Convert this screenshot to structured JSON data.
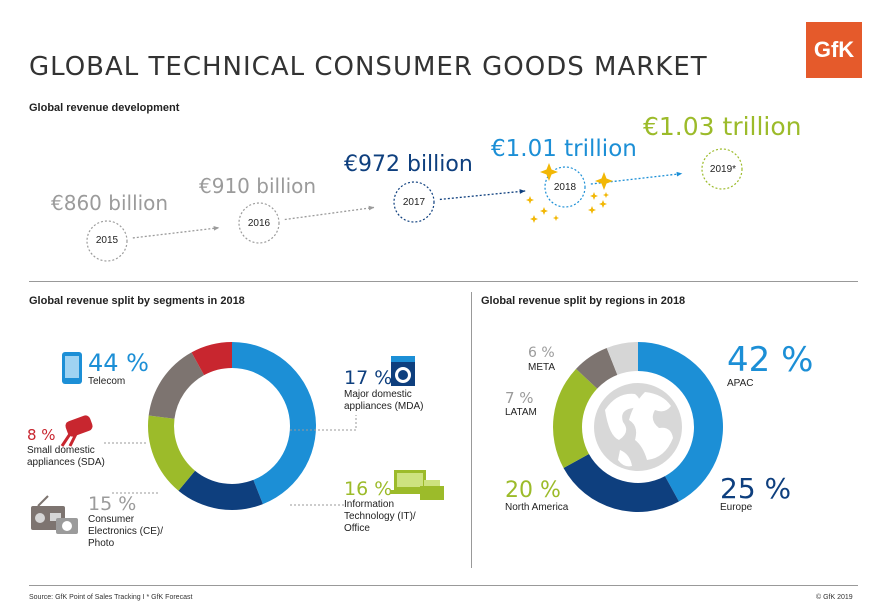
{
  "header": {
    "title": "GLOBAL TECHNICAL CONSUMER GOODS MARKET",
    "logo_text": "GfK"
  },
  "colors": {
    "grey": "#9b9b9b",
    "dark_blue": "#0e3f7e",
    "light_blue": "#1c8fd6",
    "green": "#9cbb2a",
    "red": "#c8262f",
    "taupe": "#7d7470",
    "light_grey": "#d6d6d6",
    "gold": "#f2b705",
    "logo_orange": "#e55a2b"
  },
  "revenue": {
    "title": "Global revenue development",
    "points": [
      {
        "year": "2015",
        "value_label": "€860 billion",
        "value": 860
      },
      {
        "year": "2016",
        "value_label": "€910 billion",
        "value": 910
      },
      {
        "year": "2017",
        "value_label": "€972 billion",
        "value": 972
      },
      {
        "year": "2018",
        "value_label": "€1.01 trillion",
        "value": 1010
      },
      {
        "year": "2019*",
        "value_label": "€1.03 trillion",
        "value": 1030
      }
    ]
  },
  "segments": {
    "title": "Global revenue split by segments in 2018",
    "telecom": {
      "pct": "44 %",
      "label": "Telecom"
    },
    "mda": {
      "pct": "17 %",
      "label": "Major domestic appliances (MDA)"
    },
    "sda": {
      "pct": "8 %",
      "label": "Small domestic appliances (SDA)"
    },
    "ce": {
      "pct": "15 %",
      "label": "Consumer Electronics (CE)/ Photo"
    },
    "it": {
      "pct": "16 %",
      "label": "Information Technology (IT)/ Office"
    }
  },
  "regions": {
    "title": "Global revenue split by regions in 2018",
    "meta": {
      "pct": "6 %",
      "label": "META"
    },
    "latam": {
      "pct": "7 %",
      "label": "LATAM"
    },
    "apac": {
      "pct": "42 %",
      "label": "APAC"
    },
    "europe": {
      "pct": "25 %",
      "label": "Europe"
    },
    "na": {
      "pct": "20 %",
      "label": "North America"
    }
  },
  "footer": {
    "source": "Source: GfK Point of Sales Tracking I * GfK Forecast",
    "copyright": "© GfK 2019"
  },
  "chart_data": [
    {
      "type": "line",
      "title": "Global revenue development",
      "categories": [
        "2015",
        "2016",
        "2017",
        "2018",
        "2019*"
      ],
      "values": [
        860,
        910,
        972,
        1010,
        1030
      ],
      "unit": "€ billion"
    },
    {
      "type": "pie",
      "title": "Global revenue split by segments in 2018",
      "categories": [
        "Telecom",
        "Major domestic appliances (MDA)",
        "Information Technology (IT)/ Office",
        "Consumer Electronics (CE)/ Photo",
        "Small domestic appliances (SDA)"
      ],
      "values": [
        44,
        17,
        16,
        15,
        8
      ],
      "colors": [
        "#1c8fd6",
        "#0e3f7e",
        "#9cbb2a",
        "#7d7470",
        "#c8262f"
      ]
    },
    {
      "type": "pie",
      "title": "Global revenue split by regions in 2018",
      "categories": [
        "APAC",
        "Europe",
        "North America",
        "LATAM",
        "META"
      ],
      "values": [
        42,
        25,
        20,
        7,
        6
      ],
      "colors": [
        "#1c8fd6",
        "#0e3f7e",
        "#9cbb2a",
        "#7d7470",
        "#d6d6d6"
      ]
    }
  ]
}
